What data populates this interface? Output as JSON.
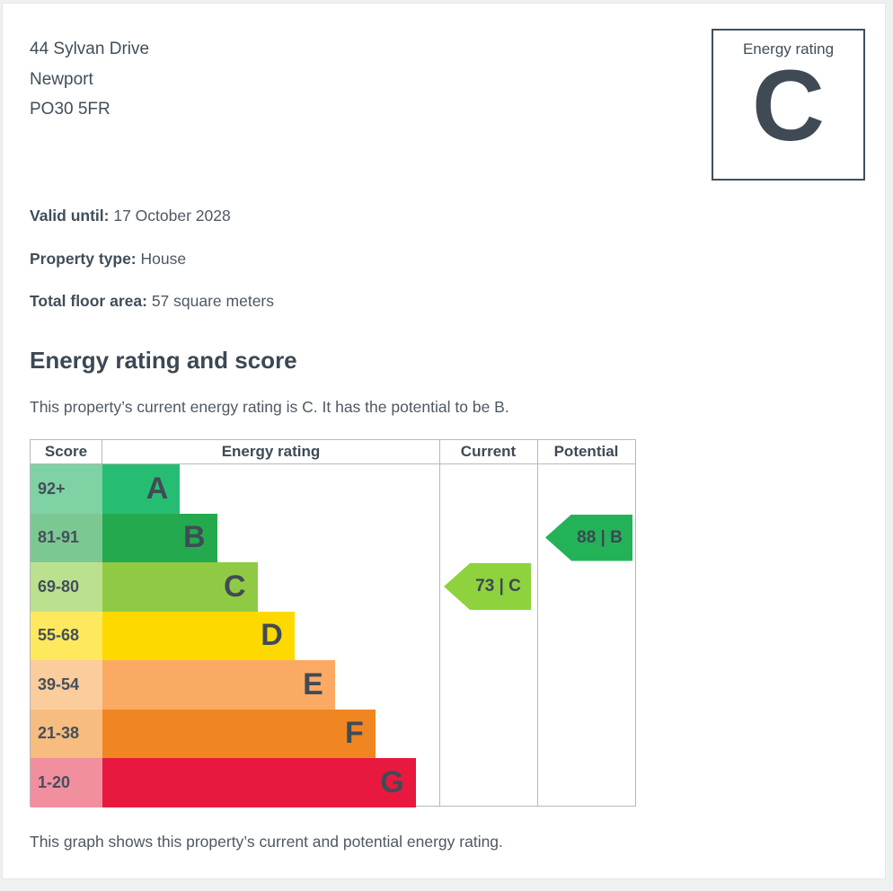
{
  "page": {
    "address_lines": [
      "44 Sylvan Drive",
      "Newport",
      "PO30 5FR"
    ],
    "rating_badge": {
      "label": "Energy rating",
      "value": "C"
    },
    "details": [
      {
        "label": "Valid until:",
        "value": "17 October 2028"
      },
      {
        "label": "Property type:",
        "value": "House"
      },
      {
        "label": "Total floor area:",
        "value": "57 square meters"
      }
    ],
    "section_heading": "Energy rating and score",
    "intro": "This property’s current energy rating is C. It has the potential to be B.",
    "caption": "This graph shows this property’s current and potential energy rating."
  },
  "chart_data": {
    "type": "table",
    "title": "Energy rating and score",
    "columns": [
      "Score",
      "Energy rating",
      "Current",
      "Potential"
    ],
    "bands": [
      {
        "letter": "A",
        "score": "92+",
        "bar_color": "#26bd73",
        "tint_color": "#7ed2a4",
        "bar_width_pct": 23
      },
      {
        "letter": "B",
        "score": "81-91",
        "bar_color": "#25a94e",
        "tint_color": "#7cc893",
        "bar_width_pct": 34
      },
      {
        "letter": "C",
        "score": "69-80",
        "bar_color": "#90ca44",
        "tint_color": "#bce18e",
        "bar_width_pct": 46
      },
      {
        "letter": "D",
        "score": "55-68",
        "bar_color": "#fed900",
        "tint_color": "#fee95e",
        "bar_width_pct": 57
      },
      {
        "letter": "E",
        "score": "39-54",
        "bar_color": "#fbaa63",
        "tint_color": "#fbcc9c",
        "bar_width_pct": 69
      },
      {
        "letter": "F",
        "score": "21-38",
        "bar_color": "#f08622",
        "tint_color": "#f6bc80",
        "bar_width_pct": 81
      },
      {
        "letter": "G",
        "score": "1-20",
        "bar_color": "#e9183f",
        "tint_color": "#f28f9f",
        "bar_width_pct": 93
      }
    ],
    "current": {
      "label": "73 | C",
      "value": 73,
      "band": "C",
      "row_index": 2,
      "color": "#8ed23e"
    },
    "potential": {
      "label": "88 | B",
      "value": 88,
      "band": "B",
      "row_index": 1,
      "color": "#24b259"
    }
  }
}
